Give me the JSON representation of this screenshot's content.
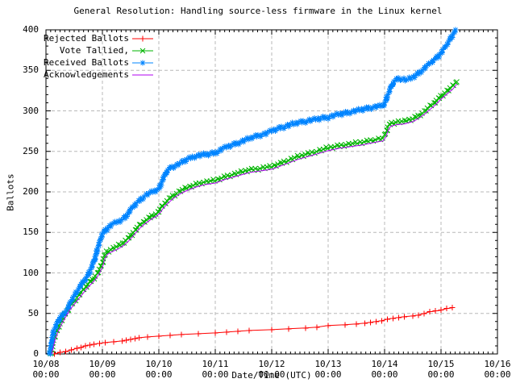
{
  "title": "General Resolution: Handling source-less firmware in the Linux kernel",
  "colors": {
    "background": "#ffffff",
    "frame": "#000000",
    "grid": "#b8b8b8",
    "rejected": "#ff0000",
    "tallied": "#00b400",
    "received": "#0084ff",
    "acknowledgements": "#b000f0"
  },
  "chart_data": {
    "type": "line",
    "title": "General Resolution: Handling source-less firmware in the Linux kernel",
    "xlabel": "Date/Time (UTC)",
    "ylabel": "Ballots",
    "ylim": [
      0,
      400
    ],
    "xlim_days": [
      0,
      8
    ],
    "grid": true,
    "legend_position": "top-left",
    "x_unit": "days since 10/08 00:00 UTC",
    "yticks": [
      "0",
      "50",
      "100",
      "150",
      "200",
      "250",
      "300",
      "350",
      "400"
    ],
    "ytick_values": [
      0,
      50,
      100,
      150,
      200,
      250,
      300,
      350,
      400
    ],
    "xticks": [
      {
        "date": "10/08",
        "time": "00:00"
      },
      {
        "date": "10/09",
        "time": "00:00"
      },
      {
        "date": "10/10",
        "time": "00:00"
      },
      {
        "date": "10/11",
        "time": "00:00"
      },
      {
        "date": "10/12",
        "time": "00:00"
      },
      {
        "date": "10/13",
        "time": "00:00"
      },
      {
        "date": "10/14",
        "time": "00:00"
      },
      {
        "date": "10/15",
        "time": "00:00"
      },
      {
        "date": "10/16",
        "time": "00:00"
      }
    ],
    "series": [
      {
        "name": "Rejected Ballots",
        "color": "#ff0000",
        "marker": "plus",
        "dense_markers": false,
        "points": [
          [
            0.15,
            0
          ],
          [
            0.25,
            2
          ],
          [
            0.35,
            3
          ],
          [
            0.45,
            5
          ],
          [
            0.55,
            7
          ],
          [
            0.62,
            8
          ],
          [
            0.7,
            10
          ],
          [
            0.78,
            11
          ],
          [
            0.85,
            12
          ],
          [
            0.95,
            13
          ],
          [
            1.05,
            14
          ],
          [
            1.2,
            15
          ],
          [
            1.35,
            16
          ],
          [
            1.42,
            17
          ],
          [
            1.5,
            18
          ],
          [
            1.58,
            19
          ],
          [
            1.65,
            20
          ],
          [
            1.8,
            21
          ],
          [
            2.0,
            22
          ],
          [
            2.2,
            23
          ],
          [
            2.4,
            24
          ],
          [
            2.7,
            25
          ],
          [
            3.0,
            26
          ],
          [
            3.2,
            27
          ],
          [
            3.4,
            28
          ],
          [
            3.6,
            29
          ],
          [
            4.0,
            30
          ],
          [
            4.3,
            31
          ],
          [
            4.6,
            32
          ],
          [
            4.8,
            33
          ],
          [
            5.0,
            35
          ],
          [
            5.3,
            36
          ],
          [
            5.5,
            37
          ],
          [
            5.65,
            38
          ],
          [
            5.75,
            39
          ],
          [
            5.85,
            40
          ],
          [
            5.95,
            41
          ],
          [
            6.05,
            43
          ],
          [
            6.15,
            44
          ],
          [
            6.25,
            45
          ],
          [
            6.35,
            46
          ],
          [
            6.5,
            47
          ],
          [
            6.6,
            48
          ],
          [
            6.7,
            50
          ],
          [
            6.8,
            52
          ],
          [
            6.9,
            53
          ],
          [
            7.0,
            54
          ],
          [
            7.1,
            56
          ],
          [
            7.2,
            57
          ]
        ]
      },
      {
        "name": "    Vote Tallied,",
        "color": "#00b400",
        "marker": "cross",
        "dense_markers": true,
        "points": [
          [
            0.09,
            0
          ],
          [
            0.12,
            10
          ],
          [
            0.15,
            20
          ],
          [
            0.2,
            30
          ],
          [
            0.27,
            40
          ],
          [
            0.35,
            50
          ],
          [
            0.42,
            58
          ],
          [
            0.5,
            65
          ],
          [
            0.58,
            72
          ],
          [
            0.65,
            78
          ],
          [
            0.72,
            84
          ],
          [
            0.8,
            90
          ],
          [
            0.88,
            96
          ],
          [
            0.95,
            104
          ],
          [
            1.0,
            112
          ],
          [
            1.03,
            120
          ],
          [
            1.08,
            126
          ],
          [
            1.15,
            129
          ],
          [
            1.25,
            132
          ],
          [
            1.35,
            136
          ],
          [
            1.45,
            142
          ],
          [
            1.55,
            150
          ],
          [
            1.65,
            158
          ],
          [
            1.75,
            164
          ],
          [
            1.85,
            169
          ],
          [
            1.95,
            173
          ],
          [
            2.0,
            176
          ],
          [
            2.07,
            183
          ],
          [
            2.15,
            189
          ],
          [
            2.25,
            195
          ],
          [
            2.35,
            200
          ],
          [
            2.5,
            205
          ],
          [
            2.65,
            209
          ],
          [
            2.8,
            212
          ],
          [
            3.0,
            214
          ],
          [
            3.15,
            218
          ],
          [
            3.3,
            221
          ],
          [
            3.45,
            224
          ],
          [
            3.6,
            227
          ],
          [
            3.8,
            229
          ],
          [
            4.0,
            231
          ],
          [
            4.15,
            235
          ],
          [
            4.3,
            239
          ],
          [
            4.45,
            243
          ],
          [
            4.6,
            246
          ],
          [
            4.8,
            250
          ],
          [
            5.0,
            254
          ],
          [
            5.2,
            257
          ],
          [
            5.4,
            259
          ],
          [
            5.6,
            261
          ],
          [
            5.8,
            264
          ],
          [
            5.97,
            266
          ],
          [
            6.02,
            272
          ],
          [
            6.06,
            280
          ],
          [
            6.1,
            284
          ],
          [
            6.2,
            286
          ],
          [
            6.35,
            287
          ],
          [
            6.5,
            290
          ],
          [
            6.6,
            294
          ],
          [
            6.7,
            299
          ],
          [
            6.8,
            305
          ],
          [
            6.9,
            311
          ],
          [
            7.0,
            318
          ],
          [
            7.1,
            324
          ],
          [
            7.2,
            330
          ],
          [
            7.28,
            336
          ]
        ]
      },
      {
        "name": "Received Ballots",
        "color": "#0084ff",
        "marker": "star",
        "dense_markers": true,
        "points": [
          [
            0.07,
            0
          ],
          [
            0.09,
            8
          ],
          [
            0.11,
            18
          ],
          [
            0.14,
            28
          ],
          [
            0.2,
            38
          ],
          [
            0.26,
            45
          ],
          [
            0.33,
            50
          ],
          [
            0.4,
            58
          ],
          [
            0.47,
            68
          ],
          [
            0.54,
            76
          ],
          [
            0.61,
            84
          ],
          [
            0.7,
            92
          ],
          [
            0.77,
            100
          ],
          [
            0.83,
            110
          ],
          [
            0.89,
            122
          ],
          [
            0.94,
            135
          ],
          [
            1.0,
            148
          ],
          [
            1.06,
            153
          ],
          [
            1.12,
            157
          ],
          [
            1.18,
            160
          ],
          [
            1.25,
            162
          ],
          [
            1.31,
            164
          ],
          [
            1.4,
            168
          ],
          [
            1.47,
            175
          ],
          [
            1.54,
            181
          ],
          [
            1.61,
            186
          ],
          [
            1.69,
            191
          ],
          [
            1.77,
            196
          ],
          [
            1.86,
            199
          ],
          [
            2.0,
            203
          ],
          [
            2.04,
            210
          ],
          [
            2.09,
            218
          ],
          [
            2.14,
            225
          ],
          [
            2.21,
            230
          ],
          [
            2.29,
            232
          ],
          [
            2.4,
            236
          ],
          [
            2.5,
            240
          ],
          [
            2.6,
            243
          ],
          [
            2.7,
            245
          ],
          [
            2.85,
            246
          ],
          [
            3.0,
            248
          ],
          [
            3.1,
            252
          ],
          [
            3.2,
            255
          ],
          [
            3.35,
            259
          ],
          [
            3.5,
            263
          ],
          [
            3.65,
            267
          ],
          [
            3.8,
            270
          ],
          [
            3.9,
            272
          ],
          [
            4.0,
            275
          ],
          [
            4.15,
            279
          ],
          [
            4.3,
            282
          ],
          [
            4.45,
            285
          ],
          [
            4.6,
            287
          ],
          [
            4.75,
            289
          ],
          [
            4.9,
            291
          ],
          [
            5.0,
            292
          ],
          [
            5.15,
            295
          ],
          [
            5.3,
            297
          ],
          [
            5.5,
            300
          ],
          [
            5.7,
            303
          ],
          [
            5.85,
            305
          ],
          [
            5.97,
            306
          ],
          [
            6.01,
            310
          ],
          [
            6.05,
            318
          ],
          [
            6.1,
            327
          ],
          [
            6.15,
            334
          ],
          [
            6.2,
            338
          ],
          [
            6.25,
            340
          ],
          [
            6.3,
            339
          ],
          [
            6.4,
            338
          ],
          [
            6.5,
            341
          ],
          [
            6.6,
            346
          ],
          [
            6.7,
            352
          ],
          [
            6.8,
            358
          ],
          [
            6.9,
            364
          ],
          [
            7.0,
            371
          ],
          [
            7.08,
            379
          ],
          [
            7.15,
            387
          ],
          [
            7.21,
            394
          ],
          [
            7.26,
            400
          ]
        ]
      },
      {
        "name": "Acknowledgements",
        "color": "#b000f0",
        "marker": "none",
        "dense_markers": false,
        "points": [
          [
            0.1,
            0
          ],
          [
            0.13,
            8
          ],
          [
            0.16,
            17
          ],
          [
            0.21,
            27
          ],
          [
            0.28,
            37
          ],
          [
            0.36,
            47
          ],
          [
            0.43,
            55
          ],
          [
            0.51,
            62
          ],
          [
            0.59,
            69
          ],
          [
            0.66,
            75
          ],
          [
            0.73,
            81
          ],
          [
            0.81,
            87
          ],
          [
            0.89,
            93
          ],
          [
            0.96,
            101
          ],
          [
            1.01,
            109
          ],
          [
            1.04,
            117
          ],
          [
            1.09,
            123
          ],
          [
            1.16,
            126
          ],
          [
            1.26,
            129
          ],
          [
            1.36,
            133
          ],
          [
            1.46,
            139
          ],
          [
            1.56,
            147
          ],
          [
            1.66,
            155
          ],
          [
            1.76,
            161
          ],
          [
            1.86,
            166
          ],
          [
            1.96,
            170
          ],
          [
            2.01,
            173
          ],
          [
            2.08,
            180
          ],
          [
            2.16,
            186
          ],
          [
            2.26,
            192
          ],
          [
            2.36,
            197
          ],
          [
            2.51,
            202
          ],
          [
            2.66,
            206
          ],
          [
            2.81,
            209
          ],
          [
            3.01,
            211
          ],
          [
            3.16,
            215
          ],
          [
            3.31,
            218
          ],
          [
            3.46,
            221
          ],
          [
            3.61,
            224
          ],
          [
            3.81,
            226
          ],
          [
            4.01,
            228
          ],
          [
            4.16,
            232
          ],
          [
            4.31,
            236
          ],
          [
            4.46,
            240
          ],
          [
            4.61,
            243
          ],
          [
            4.81,
            247
          ],
          [
            5.01,
            251
          ],
          [
            5.21,
            254
          ],
          [
            5.41,
            256
          ],
          [
            5.61,
            258
          ],
          [
            5.81,
            261
          ],
          [
            5.98,
            263
          ],
          [
            6.03,
            269
          ],
          [
            6.07,
            277
          ],
          [
            6.11,
            281
          ],
          [
            6.21,
            283
          ],
          [
            6.36,
            284
          ],
          [
            6.51,
            287
          ],
          [
            6.61,
            291
          ],
          [
            6.71,
            296
          ],
          [
            6.81,
            302
          ],
          [
            6.91,
            308
          ],
          [
            7.01,
            315
          ],
          [
            7.11,
            321
          ],
          [
            7.21,
            327
          ],
          [
            7.28,
            333
          ]
        ]
      }
    ]
  }
}
